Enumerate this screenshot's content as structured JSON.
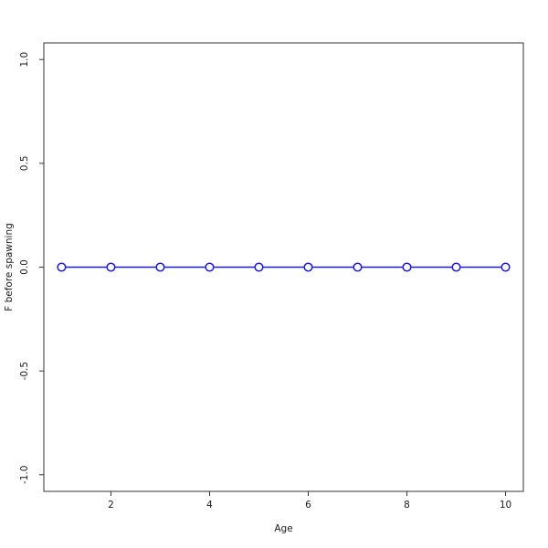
{
  "chart_data": {
    "type": "line",
    "title": "",
    "xlabel": "Age",
    "ylabel": "F before spawning",
    "x": [
      1,
      2,
      3,
      4,
      5,
      6,
      7,
      8,
      9,
      10
    ],
    "y": [
      0,
      0,
      0,
      0,
      0,
      0,
      0,
      0,
      0,
      0
    ],
    "series_name": "F before spawning vs Age",
    "xticks": [
      2,
      4,
      6,
      8,
      10
    ],
    "xtick_labels": [
      "2",
      "4",
      "6",
      "8",
      "10"
    ],
    "yticks": [
      1.0,
      0.5,
      0.0,
      -0.5,
      -1.0
    ],
    "ytick_labels": [
      "1.0",
      "0.5",
      "0.0",
      "-0.5",
      "-1.0"
    ],
    "xlim": [
      0.64,
      10.36
    ],
    "ylim": [
      -1.08,
      1.08
    ],
    "grid": false,
    "legend": "none",
    "frame_box": true,
    "marker": "open-circle",
    "line_color": "#1a1ae0",
    "frame_color": "#333333",
    "text_color": "#1a1a1a",
    "background_color": "#ffffff"
  }
}
